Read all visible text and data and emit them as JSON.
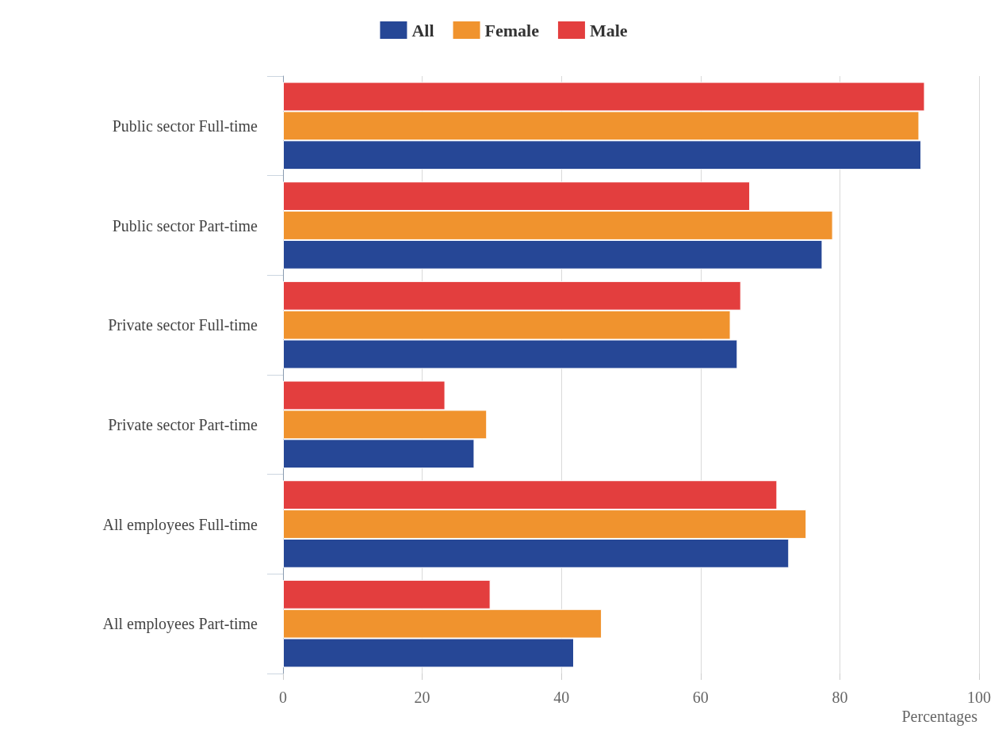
{
  "chart_data": {
    "type": "bar",
    "orientation": "horizontal",
    "xlabel": "Percentages",
    "categories": [
      "Public sector Full-time",
      "Public sector Part-time",
      "Private sector Full-time",
      "Private sector Part-time",
      "All employees Full-time",
      "All employees Part-time"
    ],
    "series": [
      {
        "name": "All",
        "color": "#264796",
        "values": [
          91.7,
          77.5,
          65.3,
          27.5,
          72.7,
          41.8
        ]
      },
      {
        "name": "Female",
        "color": "#f0932e",
        "values": [
          91.4,
          79.0,
          64.3,
          29.3,
          75.2,
          45.8
        ]
      },
      {
        "name": "Male",
        "color": "#e33e3e",
        "values": [
          92.2,
          67.1,
          65.8,
          23.3,
          71.0,
          29.8
        ]
      }
    ],
    "xlim": [
      0,
      100
    ],
    "xticks": [
      0,
      20,
      40,
      60,
      80,
      100
    ],
    "grid": "x",
    "legend": "top"
  }
}
